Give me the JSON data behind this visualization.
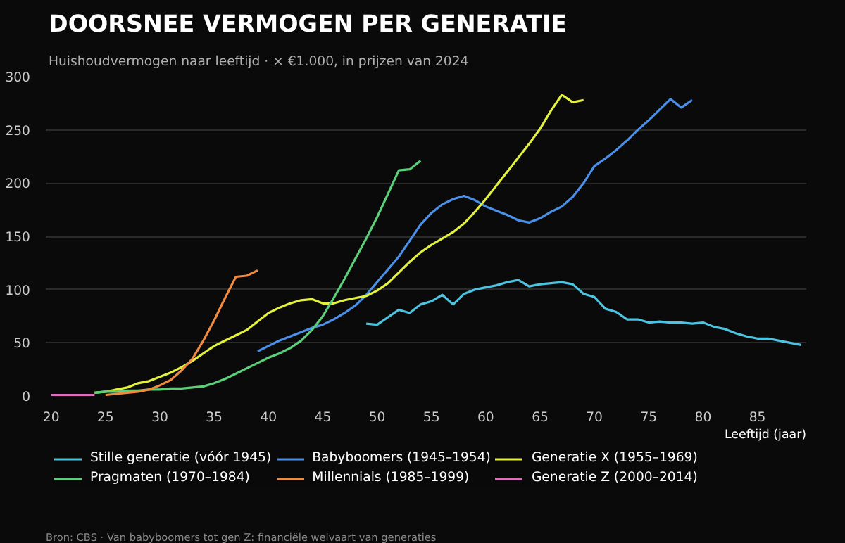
{
  "chart_data": {
    "type": "line",
    "title": "DOORSNEE VERMOGEN PER GENERATIE",
    "subtitle": "Huishoudvermogen naar leeftijd · × €1.000, in prijzen van 2024",
    "xlabel": "Leeftijd (jaar)",
    "annotations": [
      "Bron: CBS · Van babyboomers tot gen Z: financiële welvaart van generaties"
    ],
    "xlim": [
      19.5,
      89.5
    ],
    "xticks": [
      20,
      25,
      30,
      35,
      40,
      45,
      50,
      55,
      60,
      65,
      70,
      75,
      80,
      85
    ],
    "ylim": [
      0,
      300
    ],
    "yticks": [
      0,
      50,
      100,
      150,
      200,
      250,
      300
    ],
    "grid": "y",
    "legend": "bottom",
    "marker": "none",
    "line_style": "solid",
    "series": [
      {
        "name": "Stille generatie (vóór 1945)",
        "color": "#4cc3e0",
        "x": [
          49,
          50,
          51,
          52,
          53,
          54,
          55,
          56,
          57,
          58,
          59,
          60,
          61,
          62,
          63,
          64,
          65,
          66,
          67,
          68,
          69,
          70,
          71,
          72,
          73,
          74,
          75,
          76,
          77,
          78,
          79,
          80,
          81,
          82,
          83,
          84,
          85,
          86,
          87,
          88,
          89
        ],
        "values": [
          68,
          67,
          74,
          81,
          78,
          86,
          89,
          95,
          86,
          96,
          100,
          102,
          104,
          107,
          109,
          103,
          105,
          106,
          107,
          105,
          96,
          93,
          82,
          79,
          72,
          72,
          69,
          70,
          69,
          69,
          68,
          69,
          65,
          63,
          59,
          56,
          54,
          54,
          52,
          50,
          48
        ]
      },
      {
        "name": "Babyboomers (1945–1954)",
        "color": "#4a8fe8",
        "x": [
          39,
          40,
          41,
          42,
          43,
          44,
          45,
          46,
          47,
          48,
          49,
          50,
          51,
          52,
          53,
          54,
          55,
          56,
          57,
          58,
          59,
          60,
          61,
          62,
          63,
          64,
          65,
          66,
          67,
          68,
          69,
          70,
          71,
          72,
          73,
          74,
          75,
          76,
          77,
          78,
          79
        ],
        "values": [
          42,
          47,
          52,
          56,
          60,
          64,
          67,
          72,
          78,
          85,
          95,
          107,
          119,
          131,
          146,
          161,
          172,
          180,
          185,
          188,
          184,
          178,
          174,
          170,
          165,
          163,
          167,
          173,
          178,
          187,
          200,
          216,
          223,
          231,
          240,
          250,
          259,
          269,
          279,
          271,
          278
        ]
      },
      {
        "name": "Generatie X (1955–1969)",
        "color": "#e3f03c",
        "x": [
          24,
          25,
          26,
          27,
          28,
          29,
          30,
          31,
          32,
          33,
          34,
          35,
          36,
          37,
          38,
          39,
          40,
          41,
          42,
          43,
          44,
          45,
          46,
          47,
          48,
          49,
          50,
          51,
          52,
          53,
          54,
          55,
          56,
          57,
          58,
          59,
          60,
          61,
          62,
          63,
          64,
          65,
          66,
          67,
          68,
          69
        ],
        "values": [
          3,
          4,
          6,
          8,
          12,
          14,
          18,
          22,
          27,
          33,
          40,
          47,
          52,
          57,
          62,
          70,
          78,
          83,
          87,
          90,
          91,
          87,
          87,
          90,
          92,
          94,
          99,
          106,
          116,
          126,
          135,
          142,
          148,
          154,
          162,
          173,
          185,
          198,
          211,
          224,
          237,
          251,
          268,
          283,
          276,
          278
        ]
      },
      {
        "name": "Pragmaten (1970–1984)",
        "color": "#5ccf7a",
        "x": [
          24,
          25,
          26,
          27,
          28,
          29,
          30,
          31,
          32,
          33,
          34,
          35,
          36,
          37,
          38,
          39,
          40,
          41,
          42,
          43,
          44,
          45,
          46,
          47,
          48,
          49,
          50,
          51,
          52,
          53,
          54
        ],
        "values": [
          3,
          4,
          4,
          5,
          5,
          6,
          6,
          7,
          7,
          8,
          9,
          12,
          16,
          21,
          26,
          31,
          36,
          40,
          45,
          52,
          62,
          75,
          92,
          110,
          129,
          148,
          168,
          190,
          212,
          213,
          221
        ]
      },
      {
        "name": "Millennials (1985–1999)",
        "color": "#f08a3e",
        "x": [
          25,
          26,
          27,
          28,
          29,
          30,
          31,
          32,
          33,
          34,
          35,
          36,
          37,
          38,
          39
        ],
        "values": [
          1,
          2,
          3,
          4,
          6,
          10,
          15,
          24,
          35,
          52,
          71,
          92,
          112,
          113,
          118
        ]
      },
      {
        "name": "Generatie Z (2000–2014)",
        "color": "#e06cc0",
        "x": [
          20,
          21,
          22,
          23,
          24
        ],
        "values": [
          1,
          1,
          1,
          1,
          1
        ]
      }
    ]
  }
}
